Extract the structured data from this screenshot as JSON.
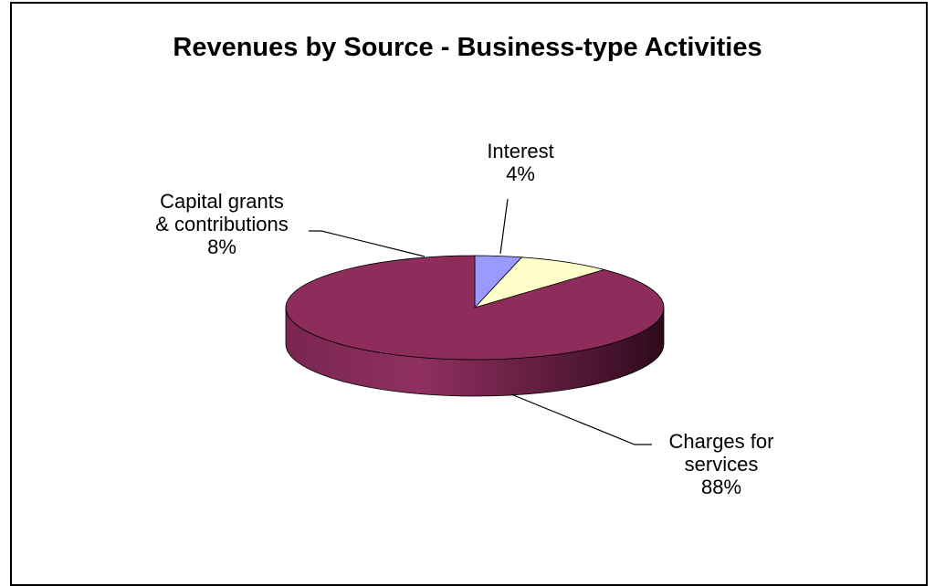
{
  "chart_data": {
    "type": "pie",
    "title": "Revenues by Source - Business-type Activities",
    "slices": [
      {
        "name": "Interest",
        "value": 4,
        "pct_label": "4%",
        "color": "#9999ff",
        "label_lines": [
          "Interest",
          "4%"
        ]
      },
      {
        "name": "Capital grants & contributions",
        "value": 8,
        "pct_label": "8%",
        "color": "#ffffcc",
        "label_lines": [
          "Capital grants",
          "& contributions",
          "8%"
        ]
      },
      {
        "name": "Charges for services",
        "value": 88,
        "pct_label": "88%",
        "color": "#8e2d5c",
        "label_lines": [
          "Charges for",
          "services",
          "88%"
        ]
      }
    ],
    "style": "3d",
    "legend": "none"
  }
}
